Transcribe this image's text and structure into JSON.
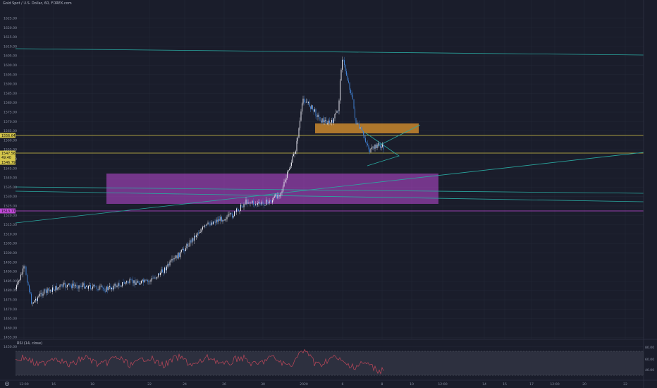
{
  "header": {
    "symbol_title": "Gold Spot / U.S. Dollar, 60, FOREX.com"
  },
  "colors": {
    "background": "#1a1d2b",
    "grid": "#242838",
    "candle_up": "#e8e8f0",
    "candle_down": "#3f7fd0",
    "trendline": "#2aa8a0",
    "support_line": "#d4c54a",
    "resistance_zone": "#c04ad8",
    "supply_zone": "#e0962e",
    "rsi_line": "#c0475a",
    "rsi_band": "#3a3e4c"
  },
  "price_axis": {
    "ticks": [
      "1625.00",
      "1620.00",
      "1615.00",
      "1610.00",
      "1605.00",
      "1600.00",
      "1595.00",
      "1590.00",
      "1585.00",
      "1580.00",
      "1575.00",
      "1570.00",
      "1565.00",
      "1560.00",
      "1555.00",
      "1550.00",
      "1545.00",
      "1540.00",
      "1535.00",
      "1530.00",
      "1525.00",
      "1520.00",
      "1515.00",
      "1510.00",
      "1505.00",
      "1500.00",
      "1495.00",
      "1490.00",
      "1485.00",
      "1480.00",
      "1475.00",
      "1470.00",
      "1465.00",
      "1460.00",
      "1455.00",
      "1450.00"
    ],
    "badges": [
      {
        "label": "1556.64",
        "color": "#d4c54a"
      },
      {
        "label": "1547.56",
        "color": "#d4c54a"
      },
      {
        "label": "49:40",
        "color": "#d4c54a"
      },
      {
        "label": "1546.79",
        "color": "#d4c54a"
      },
      {
        "label": "1513.77",
        "color": "#c04ad8"
      }
    ]
  },
  "time_axis": {
    "labels": [
      "12:00",
      "16",
      "18",
      "22",
      "24",
      "26",
      "30",
      "2020",
      "6",
      "8",
      "10",
      "12:00",
      "14",
      "15",
      "17",
      "12:00",
      "20",
      "22",
      "24"
    ]
  },
  "rsi": {
    "title": "RSI (14, close)",
    "ticks": [
      "80.00",
      "60.00",
      "40.00"
    ]
  },
  "icons": {
    "settings": "gear-icon"
  }
}
